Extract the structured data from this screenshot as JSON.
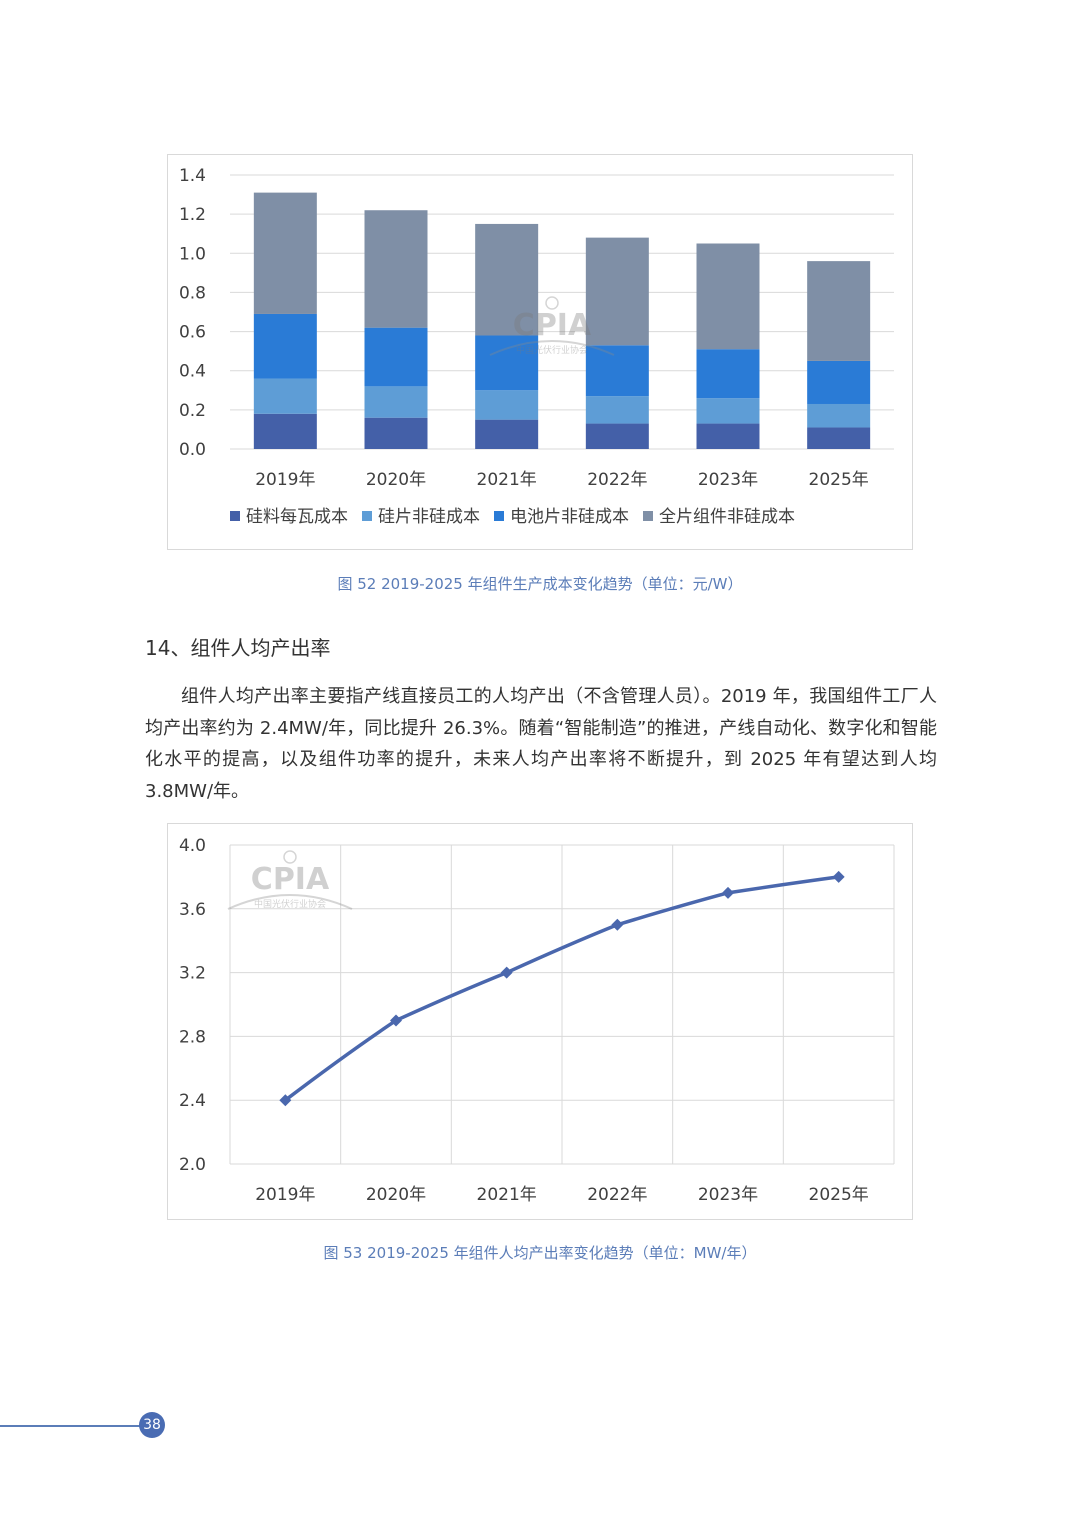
{
  "chart_data": [
    {
      "type": "bar",
      "stacked": true,
      "categories": [
        "2019年",
        "2020年",
        "2021年",
        "2022年",
        "2023年",
        "2025年"
      ],
      "series": [
        {
          "name": "硅料每瓦成本",
          "color": "#4460a8",
          "values": [
            0.18,
            0.16,
            0.15,
            0.13,
            0.13,
            0.11
          ]
        },
        {
          "name": "硅片非硅成本",
          "color": "#5e9dd6",
          "values": [
            0.18,
            0.16,
            0.15,
            0.14,
            0.13,
            0.12
          ]
        },
        {
          "name": "电池片非硅成本",
          "color": "#2a7bd6",
          "values": [
            0.33,
            0.3,
            0.28,
            0.26,
            0.25,
            0.22
          ]
        },
        {
          "name": "全片组件非硅成本",
          "color": "#7f8fa6",
          "values": [
            0.62,
            0.6,
            0.57,
            0.55,
            0.54,
            0.51
          ]
        }
      ],
      "y_ticks": [
        "0.0",
        "0.2",
        "0.4",
        "0.6",
        "0.8",
        "1.0",
        "1.2",
        "1.4"
      ],
      "ylim": [
        0,
        1.4
      ],
      "grid": true,
      "legend_position": "bottom"
    },
    {
      "type": "line",
      "categories": [
        "2019年",
        "2020年",
        "2021年",
        "2022年",
        "2023年",
        "2025年"
      ],
      "series": [
        {
          "color": "#4a67ad",
          "values": [
            2.4,
            2.9,
            3.2,
            3.5,
            3.7,
            3.8
          ]
        }
      ],
      "y_ticks": [
        "2.0",
        "2.4",
        "2.8",
        "3.2",
        "3.6",
        "4.0"
      ],
      "ylim": [
        2.0,
        4.0
      ],
      "grid": true,
      "marker": "diamond"
    }
  ],
  "captions": {
    "fig52": "图 52    2019-2025 年组件生产成本变化趋势（单位：元/W）",
    "fig53": "图  53    2019-2025 年组件人均产出率变化趋势（单位：MW/年）"
  },
  "section": {
    "title": "14、组件人均产出率",
    "paragraph": "组件人均产出率主要指产线直接员工的人均产出（不含管理人员）。2019 年，我国组件工厂人均产出率约为 2.4MW/年，同比提升 26.3%。随着“智能制造”的推进，产线自动化、数字化和智能化水平的提高，以及组件功率的提升，未来人均产出率将不断提升，到 2025 年有望达到人均 3.8MW/年。"
  },
  "watermark": {
    "title": "CPIA",
    "subtitle": "中国光伏行业协会"
  },
  "page_number": "38"
}
